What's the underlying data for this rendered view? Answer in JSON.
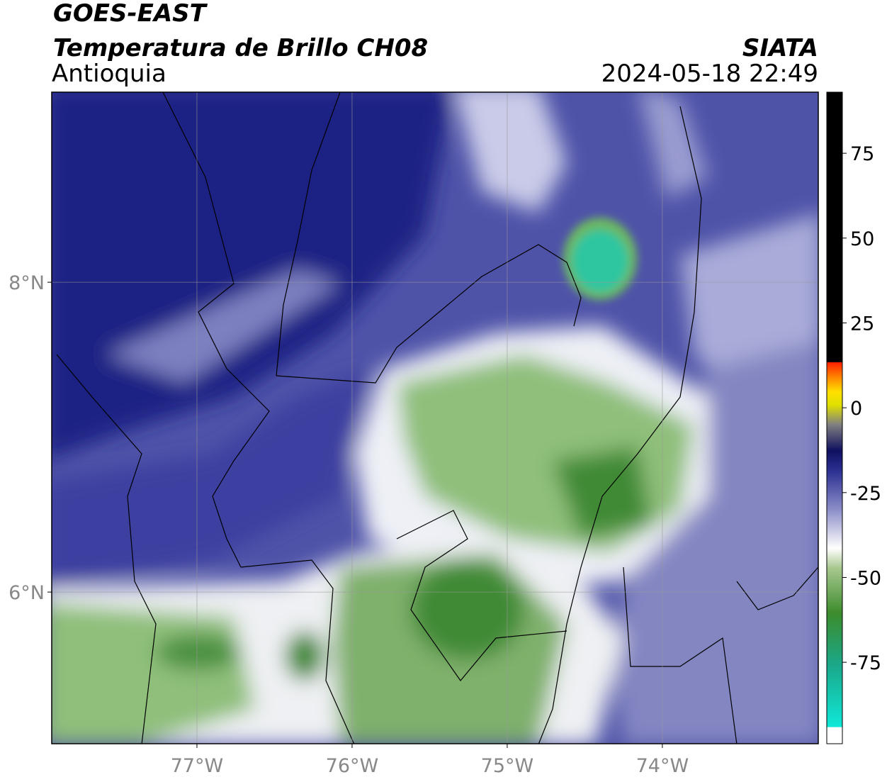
{
  "header": {
    "satellite": "GOES-EAST",
    "product": "Temperatura de Brillo CH08",
    "region": "Antioquia",
    "source": "SIATA",
    "datetime": "2024-05-18 22:49"
  },
  "map": {
    "xlim": [
      -77.936,
      -72.995
    ],
    "ylim": [
      5.021,
      9.227
    ],
    "xticks": [
      {
        "value": -77,
        "label": "77°W"
      },
      {
        "value": -76,
        "label": "76°W"
      },
      {
        "value": -75,
        "label": "75°W"
      },
      {
        "value": -74,
        "label": "74°W"
      }
    ],
    "yticks": [
      {
        "value": 8,
        "label": "8°N"
      },
      {
        "value": 6,
        "label": "6°N"
      }
    ],
    "grid": true
  },
  "colorbar": {
    "lim": [
      -99,
      93
    ],
    "ticks": [
      75,
      50,
      25,
      0,
      -25,
      -50,
      -75
    ]
  }
}
